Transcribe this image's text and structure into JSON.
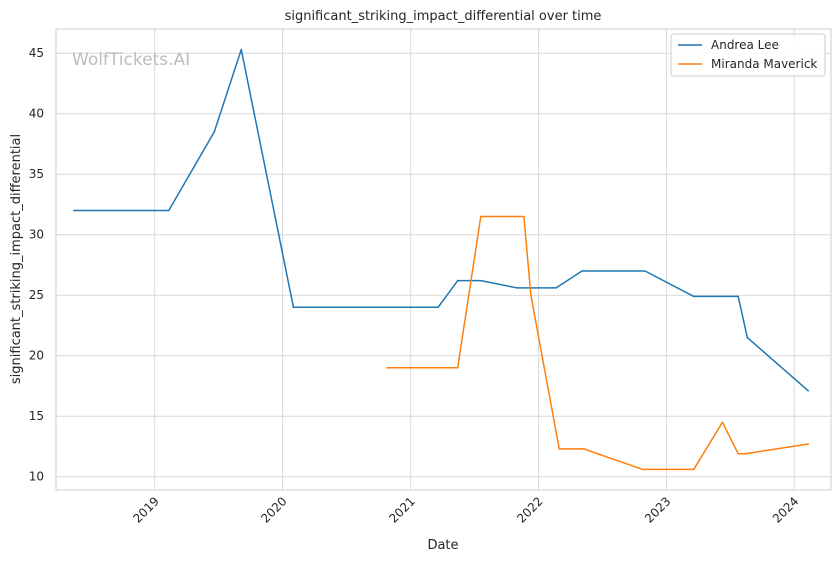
{
  "chart_data": {
    "type": "line",
    "title": "significant_striking_impact_differential over time",
    "xlabel": "Date",
    "ylabel": "significant_striking_impact_differential",
    "watermark": "WolfTickets.AI",
    "x_ticks": [
      "2019",
      "2020",
      "2021",
      "2022",
      "2023",
      "2024"
    ],
    "y_ticks": [
      "10",
      "15",
      "20",
      "25",
      "30",
      "35",
      "40",
      "45"
    ],
    "xlim": [
      "2018-03-25",
      "2024-04-15"
    ],
    "ylim": [
      8.9,
      47.0
    ],
    "grid": true,
    "legend_position": "top-right",
    "series": [
      {
        "name": "Andrea Lee",
        "color": "#1f77b4",
        "points": [
          [
            "2018-05-15",
            32.0
          ],
          [
            "2019-02-10",
            32.0
          ],
          [
            "2019-06-20",
            38.5
          ],
          [
            "2019-09-05",
            45.3
          ],
          [
            "2020-02-01",
            24.0
          ],
          [
            "2021-03-20",
            24.0
          ],
          [
            "2021-05-15",
            26.2
          ],
          [
            "2021-07-20",
            26.2
          ],
          [
            "2021-11-01",
            25.6
          ],
          [
            "2022-02-20",
            25.6
          ],
          [
            "2022-05-05",
            27.0
          ],
          [
            "2022-11-01",
            27.0
          ],
          [
            "2023-03-20",
            24.9
          ],
          [
            "2023-07-25",
            24.9
          ],
          [
            "2023-08-20",
            21.5
          ],
          [
            "2024-02-10",
            17.1
          ]
        ]
      },
      {
        "name": "Miranda Maverick",
        "color": "#ff7f0e",
        "points": [
          [
            "2020-10-25",
            19.0
          ],
          [
            "2021-05-15",
            19.0
          ],
          [
            "2021-07-20",
            31.5
          ],
          [
            "2021-11-20",
            31.5
          ],
          [
            "2021-12-10",
            25.0
          ],
          [
            "2022-03-01",
            12.3
          ],
          [
            "2022-05-10",
            12.3
          ],
          [
            "2022-10-25",
            10.6
          ],
          [
            "2023-03-20",
            10.6
          ],
          [
            "2023-06-10",
            14.5
          ],
          [
            "2023-07-25",
            11.9
          ],
          [
            "2023-08-15",
            11.9
          ],
          [
            "2024-02-10",
            12.7
          ]
        ]
      }
    ]
  }
}
